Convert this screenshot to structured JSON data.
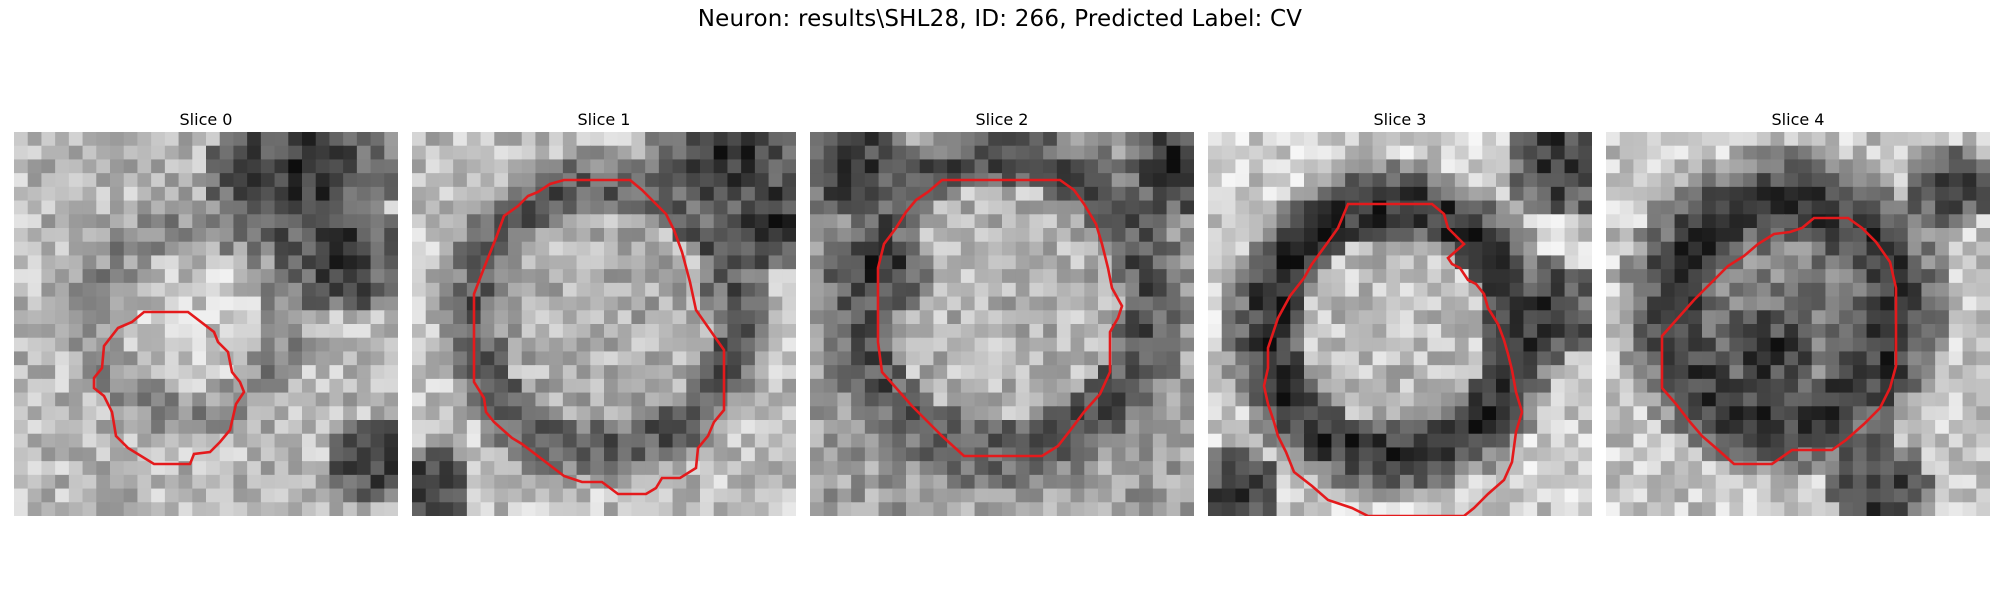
{
  "figure": {
    "title": "Neuron: results\\SHL28, ID: 266, Predicted Label: CV"
  },
  "panels": [
    {
      "title": "Slice 0"
    },
    {
      "title": "Slice 1"
    },
    {
      "title": "Slice 2"
    },
    {
      "title": "Slice 3"
    },
    {
      "title": "Slice 4"
    }
  ],
  "colors": {
    "contour": "#e41a1c",
    "background": "#ffffff"
  },
  "image_style": "grayscale microscopy, nearest-neighbour pixel grid"
}
